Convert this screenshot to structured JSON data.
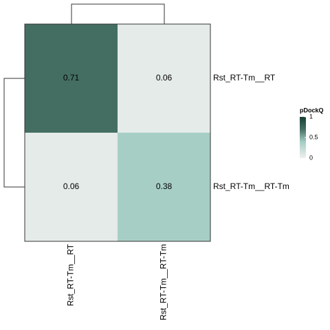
{
  "chart_data": {
    "type": "heatmap",
    "rows": [
      "Rst_RT-Tm__RT",
      "Rst_RT-Tm__RT-Tm"
    ],
    "columns": [
      "Rst_RT-Tm__RT",
      "Rst_RT-Tm__RT-Tm"
    ],
    "values": [
      [
        0.71,
        0.06
      ],
      [
        0.06,
        0.38
      ]
    ],
    "legend_title": "pDockQ",
    "colorbar_lim": [
      0,
      1
    ],
    "colorbar_ticks": [
      0,
      0.5,
      1
    ],
    "color_stops": [
      {
        "value": 0,
        "color": "#f0f0f0"
      },
      {
        "value": 0.4,
        "color": "#a3ccc3"
      },
      {
        "value": 0.7,
        "color": "#467064"
      },
      {
        "value": 1,
        "color": "#173f35"
      }
    ]
  }
}
